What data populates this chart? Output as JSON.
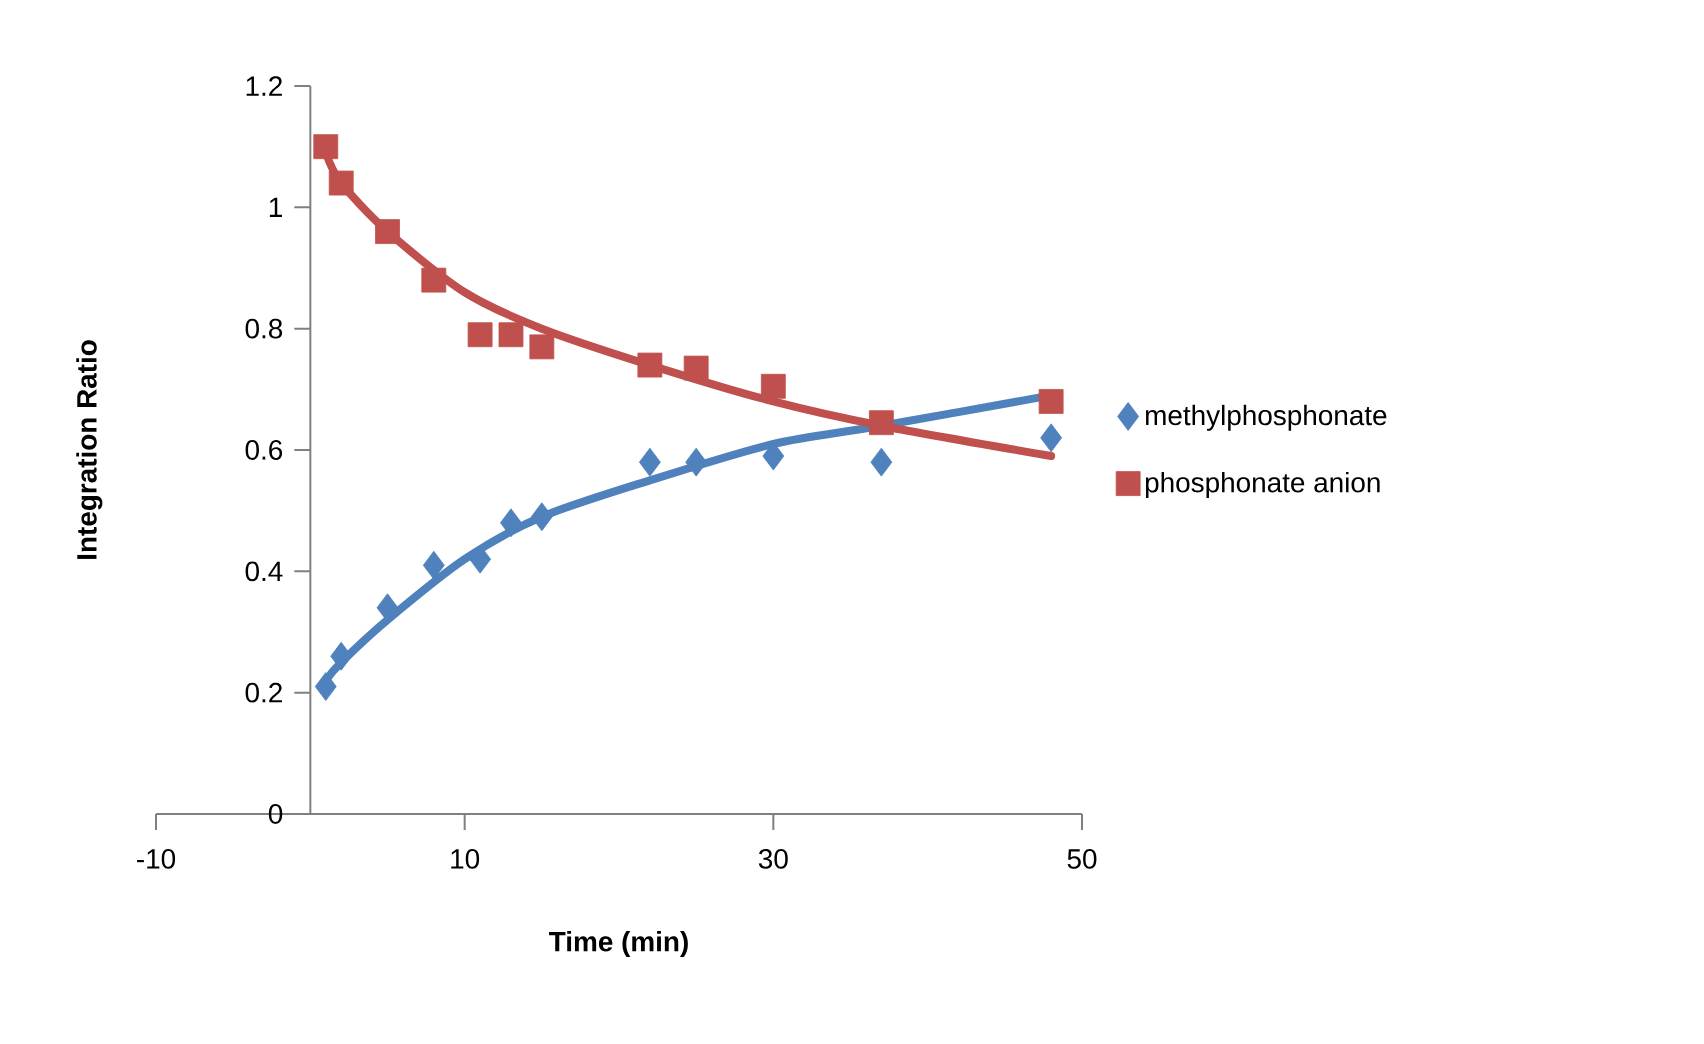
{
  "chart_data": {
    "type": "scatter",
    "xlabel": "Time (min)",
    "ylabel": "Integration Ratio",
    "xlim": [
      -10,
      50
    ],
    "ylim": [
      0,
      1.2
    ],
    "xticks": [
      -10,
      10,
      30,
      50
    ],
    "yticks": [
      0,
      0.2,
      0.4,
      0.6,
      0.8,
      1,
      1.2
    ],
    "legend": "right",
    "series": [
      {
        "name": "methylphosphonate",
        "color": "#4f81bd",
        "marker": "diamond",
        "x": [
          1,
          2,
          5,
          8,
          11,
          13,
          15,
          22,
          25,
          30,
          37,
          48
        ],
        "values": [
          0.21,
          0.26,
          0.34,
          0.41,
          0.42,
          0.48,
          0.49,
          0.58,
          0.58,
          0.59,
          0.58,
          0.62
        ]
      },
      {
        "name": "phosphonate anion",
        "color": "#c0504d",
        "marker": "square",
        "x": [
          1,
          2,
          5,
          8,
          11,
          13,
          15,
          22,
          25,
          30,
          37,
          48
        ],
        "values": [
          1.1,
          1.04,
          0.96,
          0.88,
          0.79,
          0.79,
          0.77,
          0.74,
          0.735,
          0.705,
          0.645,
          0.68
        ]
      },
      {
        "type": "line",
        "color": "#4f81bd",
        "marker": "none",
        "x": [
          1,
          2,
          5,
          10,
          15,
          22,
          30,
          37,
          48
        ],
        "values": [
          0.22,
          0.25,
          0.32,
          0.42,
          0.49,
          0.55,
          0.61,
          0.64,
          0.69
        ]
      },
      {
        "type": "line",
        "color": "#c0504d",
        "marker": "none",
        "x": [
          1,
          2,
          5,
          10,
          15,
          22,
          30,
          37,
          48
        ],
        "values": [
          1.09,
          1.04,
          0.96,
          0.86,
          0.8,
          0.74,
          0.68,
          0.64,
          0.59
        ]
      }
    ]
  }
}
